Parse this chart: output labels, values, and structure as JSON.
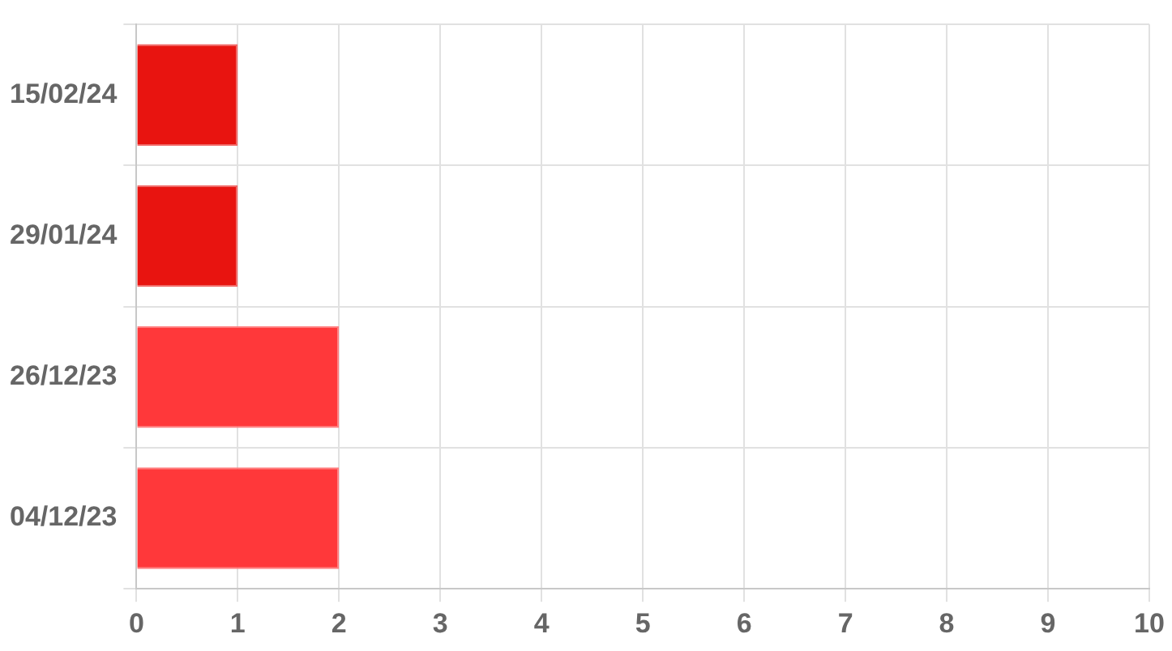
{
  "chart_data": {
    "type": "bar",
    "orientation": "horizontal",
    "categories": [
      "15/02/24",
      "29/01/24",
      "26/12/23",
      "04/12/23"
    ],
    "values": [
      1,
      1,
      2,
      2
    ],
    "colors": [
      "#e81410",
      "#e81410",
      "#ff383a",
      "#ff383a"
    ],
    "xlim": [
      0,
      10
    ],
    "xticks": [
      0,
      1,
      2,
      3,
      4,
      5,
      6,
      7,
      8,
      9,
      10
    ],
    "grid": true,
    "legend": false
  }
}
